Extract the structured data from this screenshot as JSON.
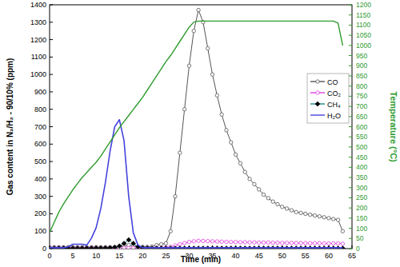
{
  "chart_data": {
    "type": "line",
    "x_label": "Time (min)",
    "y_label": "Gas content in N₂/H₂ - 90/10% (ppm)",
    "y2_label": "Temperature (°C)",
    "x": [
      0,
      1,
      2,
      3,
      4,
      5,
      6,
      7,
      8,
      9,
      10,
      11,
      12,
      13,
      14,
      15,
      16,
      17,
      18,
      19,
      20,
      21,
      22,
      23,
      24,
      25,
      26,
      27,
      28,
      29,
      30,
      31,
      32,
      33,
      34,
      35,
      36,
      37,
      38,
      39,
      40,
      41,
      42,
      43,
      44,
      45,
      46,
      47,
      48,
      49,
      50,
      51,
      52,
      53,
      54,
      55,
      56,
      57,
      58,
      59,
      60,
      61,
      62,
      63
    ],
    "xlim": [
      0,
      65
    ],
    "xticks": [
      0,
      5,
      10,
      15,
      20,
      25,
      30,
      35,
      40,
      45,
      50,
      55,
      60,
      65
    ],
    "ylim": [
      0,
      1400
    ],
    "yticks": [
      0,
      100,
      200,
      300,
      400,
      500,
      600,
      700,
      800,
      900,
      1000,
      1100,
      1200,
      1300,
      1400
    ],
    "y2lim": [
      0,
      1200
    ],
    "y2ticks": [
      0,
      50,
      100,
      150,
      200,
      250,
      300,
      350,
      400,
      450,
      500,
      550,
      600,
      650,
      700,
      750,
      800,
      850,
      900,
      950,
      1000,
      1050,
      1100,
      1150,
      1200
    ],
    "legend": "right",
    "series": [
      {
        "name": "CO",
        "color": "#555555",
        "marker": "circle",
        "values": [
          8,
          8,
          8,
          8,
          8,
          8,
          8,
          8,
          8,
          8,
          8,
          8,
          8,
          8,
          8,
          10,
          15,
          20,
          15,
          10,
          10,
          10,
          12,
          20,
          25,
          30,
          100,
          300,
          550,
          800,
          1050,
          1250,
          1370,
          1300,
          1150,
          1000,
          880,
          770,
          680,
          610,
          540,
          490,
          440,
          400,
          370,
          340,
          310,
          290,
          270,
          255,
          240,
          230,
          220,
          210,
          205,
          200,
          195,
          190,
          185,
          180,
          175,
          170,
          165,
          100
        ]
      },
      {
        "name": "CO₂",
        "color": "#e040e0",
        "marker": "circle",
        "values": [
          3,
          3,
          3,
          3,
          3,
          3,
          3,
          3,
          3,
          3,
          3,
          3,
          3,
          3,
          3,
          3,
          3,
          3,
          3,
          3,
          3,
          3,
          3,
          3,
          4,
          6,
          10,
          18,
          25,
          32,
          38,
          42,
          45,
          44,
          43,
          42,
          41,
          40,
          39,
          38,
          38,
          37,
          37,
          36,
          36,
          35,
          35,
          35,
          34,
          34,
          33,
          33,
          33,
          32,
          32,
          32,
          31,
          31,
          31,
          30,
          30,
          30,
          30,
          28
        ]
      },
      {
        "name": "CH₄",
        "color": "#1a8a8a",
        "marker": "diamond",
        "values": [
          2,
          2,
          2,
          2,
          2,
          2,
          2,
          2,
          2,
          2,
          3,
          3,
          4,
          5,
          8,
          15,
          30,
          50,
          30,
          10,
          5,
          3,
          2,
          2,
          2,
          2,
          2,
          2,
          2,
          2,
          2,
          2,
          2,
          2,
          2,
          2,
          2,
          2,
          2,
          2,
          2,
          2,
          2,
          2,
          2,
          2,
          2,
          2,
          2,
          2,
          2,
          2,
          2,
          2,
          2,
          2,
          2,
          2,
          2,
          2,
          2,
          2,
          2,
          2
        ]
      },
      {
        "name": "H₂O",
        "color": "#4444dd",
        "marker": "none",
        "values": [
          5,
          5,
          5,
          5,
          10,
          25,
          25,
          25,
          20,
          60,
          120,
          230,
          380,
          560,
          700,
          740,
          620,
          300,
          90,
          20,
          5,
          5,
          5,
          5,
          5,
          5,
          5,
          5,
          5,
          5,
          5,
          5,
          5,
          5,
          5,
          5,
          5,
          5,
          5,
          5,
          5,
          5,
          5,
          5,
          5,
          5,
          5,
          5,
          5,
          5,
          5,
          5,
          5,
          5,
          5,
          5,
          5,
          5,
          5,
          5,
          5,
          5,
          5,
          5
        ]
      },
      {
        "color": "#2e9b2e",
        "marker": "none",
        "axis": "y2",
        "values": [
          80,
          130,
          180,
          220,
          255,
          290,
          320,
          350,
          375,
          400,
          425,
          455,
          490,
          525,
          560,
          595,
          625,
          655,
          685,
          715,
          745,
          780,
          815,
          850,
          885,
          920,
          950,
          985,
          1020,
          1055,
          1090,
          1115,
          1120,
          1120,
          1120,
          1120,
          1120,
          1120,
          1120,
          1120,
          1120,
          1120,
          1120,
          1120,
          1120,
          1120,
          1120,
          1120,
          1120,
          1120,
          1120,
          1120,
          1120,
          1120,
          1120,
          1120,
          1120,
          1120,
          1120,
          1120,
          1120,
          1120,
          1110,
          1000
        ]
      }
    ]
  }
}
